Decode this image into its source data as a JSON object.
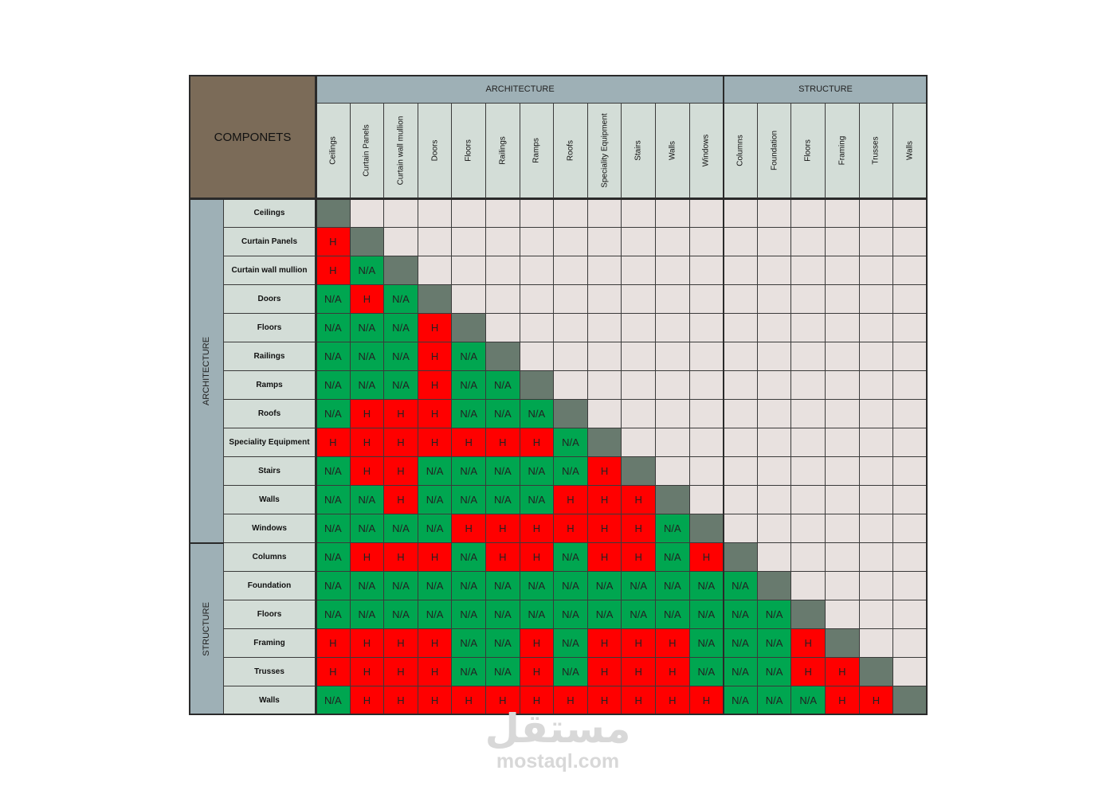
{
  "corner_label": "COMPONETS",
  "column_groups": [
    {
      "label": "ARCHITECTURE",
      "span": 12
    },
    {
      "label": "STRUCTURE",
      "span": 6
    }
  ],
  "row_groups": [
    {
      "label": "ARCHITECTURE",
      "span": 12
    },
    {
      "label": "STRUCTURE",
      "span": 6
    }
  ],
  "columns": [
    "Ceilings",
    "Curtain Panels",
    "Curtain wall mullion",
    "Doors",
    "Floors",
    "Railings",
    "Ramps",
    "Roofs",
    "Speciality Equipment",
    "Stairs",
    "Walls",
    "Windows",
    "Columns",
    "Foundation",
    "Floors",
    "Framing",
    "Trusses",
    "Walls"
  ],
  "rows": [
    {
      "label": "Ceilings",
      "cells": []
    },
    {
      "label": "Curtain Panels",
      "cells": [
        "H"
      ]
    },
    {
      "label": "Curtain wall mullion",
      "cells": [
        "H",
        "N/A"
      ]
    },
    {
      "label": "Doors",
      "cells": [
        "N/A",
        "H",
        "N/A"
      ]
    },
    {
      "label": "Floors",
      "cells": [
        "N/A",
        "N/A",
        "N/A",
        "H"
      ]
    },
    {
      "label": "Railings",
      "cells": [
        "N/A",
        "N/A",
        "N/A",
        "H",
        "N/A"
      ]
    },
    {
      "label": "Ramps",
      "cells": [
        "N/A",
        "N/A",
        "N/A",
        "H",
        "N/A",
        "N/A"
      ]
    },
    {
      "label": "Roofs",
      "cells": [
        "N/A",
        "H",
        "H",
        "H",
        "N/A",
        "N/A",
        "N/A"
      ]
    },
    {
      "label": "Speciality Equipment",
      "cells": [
        "H",
        "H",
        "H",
        "H",
        "H",
        "H",
        "H",
        "N/A"
      ]
    },
    {
      "label": "Stairs",
      "cells": [
        "N/A",
        "H",
        "H",
        "N/A",
        "N/A",
        "N/A",
        "N/A",
        "N/A",
        "H"
      ]
    },
    {
      "label": "Walls",
      "cells": [
        "N/A",
        "N/A",
        "H",
        "N/A",
        "N/A",
        "N/A",
        "N/A",
        "H",
        "H",
        "H"
      ]
    },
    {
      "label": "Windows",
      "cells": [
        "N/A",
        "N/A",
        "N/A",
        "N/A",
        "H",
        "H",
        "H",
        "H",
        "H",
        "H",
        "N/A"
      ]
    },
    {
      "label": "Columns",
      "cells": [
        "N/A",
        "H",
        "H",
        "H",
        "N/A",
        "H",
        "H",
        "N/A",
        "H",
        "H",
        "N/A",
        "H"
      ]
    },
    {
      "label": "Foundation",
      "cells": [
        "N/A",
        "N/A",
        "N/A",
        "N/A",
        "N/A",
        "N/A",
        "N/A",
        "N/A",
        "N/A",
        "N/A",
        "N/A",
        "N/A",
        "N/A"
      ]
    },
    {
      "label": "Floors",
      "cells": [
        "N/A",
        "N/A",
        "N/A",
        "N/A",
        "N/A",
        "N/A",
        "N/A",
        "N/A",
        "N/A",
        "N/A",
        "N/A",
        "N/A",
        "N/A",
        "N/A"
      ]
    },
    {
      "label": "Framing",
      "cells": [
        "H",
        "H",
        "H",
        "H",
        "N/A",
        "N/A",
        "H",
        "N/A",
        "H",
        "H",
        "H",
        "N/A",
        "N/A",
        "N/A",
        "H"
      ]
    },
    {
      "label": "Trusses",
      "cells": [
        "H",
        "H",
        "H",
        "H",
        "N/A",
        "N/A",
        "H",
        "N/A",
        "H",
        "H",
        "H",
        "N/A",
        "N/A",
        "N/A",
        "H",
        "H"
      ]
    },
    {
      "label": "Walls",
      "cells": [
        "N/A",
        "H",
        "H",
        "H",
        "H",
        "H",
        "H",
        "H",
        "H",
        "H",
        "H",
        "H",
        "N/A",
        "N/A",
        "N/A",
        "H",
        "H"
      ]
    }
  ],
  "colors": {
    "H": "#ff0000",
    "N/A": "#00a650",
    "diagonal": "#687a6e",
    "empty": "#e8e1df",
    "header": "#d3ddd7",
    "group_header": "#9eb0b6",
    "corner": "#7b6b58"
  },
  "watermark": {
    "logo": "مستقل",
    "text": "mostaql.com"
  }
}
